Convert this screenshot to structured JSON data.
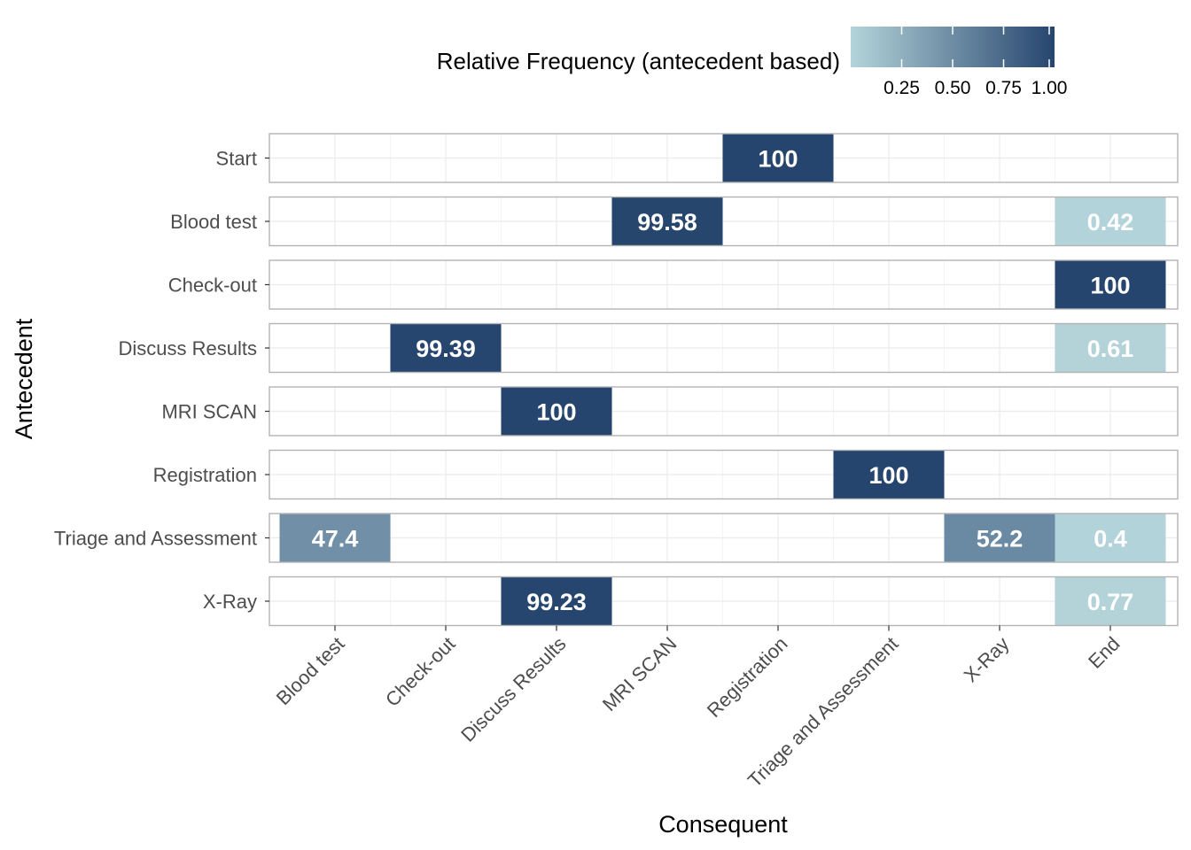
{
  "chart_data": {
    "type": "heatmap",
    "xlabel": "Consequent",
    "ylabel": "Antecedent",
    "x_categories": [
      "Blood test",
      "Check-out",
      "Discuss Results",
      "MRI SCAN",
      "Registration",
      "Triage and Assessment",
      "X-Ray",
      "End"
    ],
    "y_categories": [
      "Start",
      "Blood test",
      "Check-out",
      "Discuss Results",
      "MRI SCAN",
      "Registration",
      "Triage and Assessment",
      "X-Ray"
    ],
    "cells": [
      {
        "antecedent": "Start",
        "consequent": "Registration",
        "value": 1.0,
        "label": "100"
      },
      {
        "antecedent": "Blood test",
        "consequent": "MRI SCAN",
        "value": 0.9958,
        "label": "99.58"
      },
      {
        "antecedent": "Blood test",
        "consequent": "End",
        "value": 0.0042,
        "label": "0.42"
      },
      {
        "antecedent": "Check-out",
        "consequent": "End",
        "value": 1.0,
        "label": "100"
      },
      {
        "antecedent": "Discuss Results",
        "consequent": "Check-out",
        "value": 0.9939,
        "label": "99.39"
      },
      {
        "antecedent": "Discuss Results",
        "consequent": "End",
        "value": 0.0061,
        "label": "0.61"
      },
      {
        "antecedent": "MRI SCAN",
        "consequent": "Discuss Results",
        "value": 1.0,
        "label": "100"
      },
      {
        "antecedent": "Registration",
        "consequent": "Triage and Assessment",
        "value": 1.0,
        "label": "100"
      },
      {
        "antecedent": "Triage and Assessment",
        "consequent": "Blood test",
        "value": 0.474,
        "label": "47.4"
      },
      {
        "antecedent": "Triage and Assessment",
        "consequent": "X-Ray",
        "value": 0.522,
        "label": "52.2"
      },
      {
        "antecedent": "Triage and Assessment",
        "consequent": "End",
        "value": 0.004,
        "label": "0.4"
      },
      {
        "antecedent": "X-Ray",
        "consequent": "Discuss Results",
        "value": 0.9923,
        "label": "99.23"
      },
      {
        "antecedent": "X-Ray",
        "consequent": "End",
        "value": 0.0077,
        "label": "0.77"
      }
    ],
    "legend": {
      "title": "Relative Frequency (antecedent based)",
      "position": "top",
      "range": [
        0.0,
        1.0
      ],
      "ticks": [
        0.25,
        0.5,
        0.75,
        1.0
      ],
      "tick_labels": [
        "0.25",
        "0.50",
        "0.75",
        "1.00"
      ],
      "low_color": "#b4d4da",
      "high_color": "#26456e"
    },
    "grid": true,
    "facet_rows": true
  }
}
